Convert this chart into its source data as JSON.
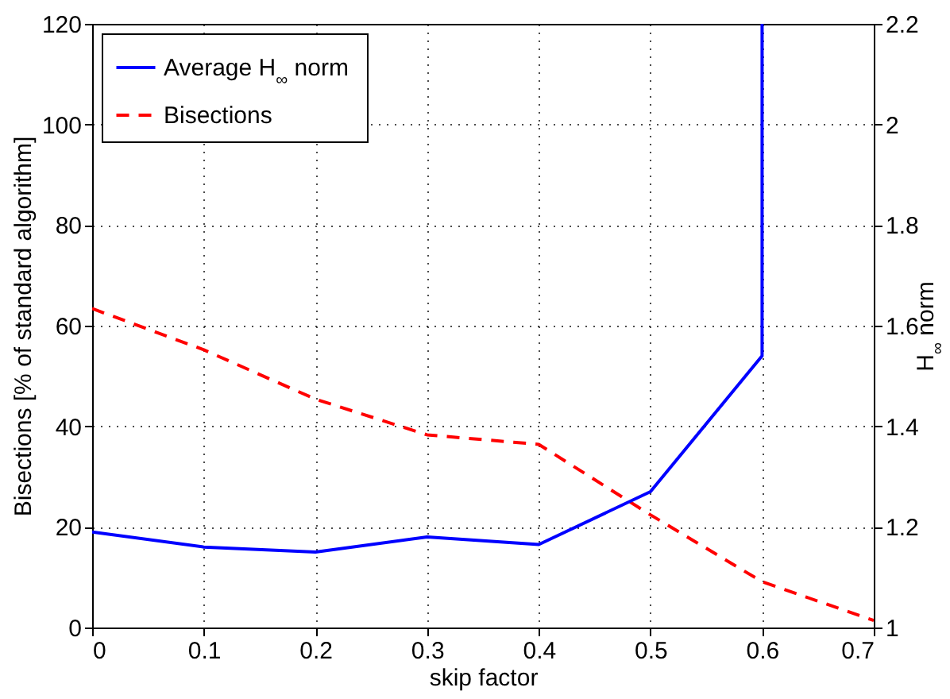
{
  "chart_data": {
    "type": "line",
    "xlabel": "skip factor",
    "ylabel": "Bisections [% of standard algorithm]",
    "y2label": "H$_{∞}$ norm",
    "xlim": [
      0,
      0.7
    ],
    "xticks": [
      0,
      0.1,
      0.2,
      0.3,
      0.4,
      0.5,
      0.6,
      0.7
    ],
    "ylim": [
      0,
      120
    ],
    "yticks": [
      0,
      20,
      40,
      60,
      80,
      100,
      120
    ],
    "y2lim": [
      1,
      2.2
    ],
    "y2ticks": [
      {
        "value": 1,
        "label": "1"
      },
      1.2,
      1.4,
      1.6,
      1.8,
      {
        "value": 2,
        "label": "2"
      },
      2.2
    ],
    "grid": true,
    "legend": "top left",
    "series": [
      {
        "name": "Average H$_{∞}$ norm",
        "color": "#0000ff",
        "axis": "y2",
        "line_style": "solid",
        "x": [
          0,
          0.1,
          0.2,
          0.3,
          0.4,
          0.5,
          0.6,
          0.6
        ],
        "values": [
          1.19,
          1.16,
          1.15,
          1.18,
          1.165,
          1.27,
          1.54,
          2.2
        ]
      },
      {
        "name": "Bisections",
        "color": "#ff0000",
        "line_style": "dashed",
        "x": [
          0,
          0.1,
          0.2,
          0.3,
          0.4,
          0.5,
          0.6,
          0.7
        ],
        "values": [
          63.4,
          55.2,
          45.4,
          38.3,
          36.4,
          22.4,
          9.1,
          1.4
        ]
      }
    ]
  }
}
